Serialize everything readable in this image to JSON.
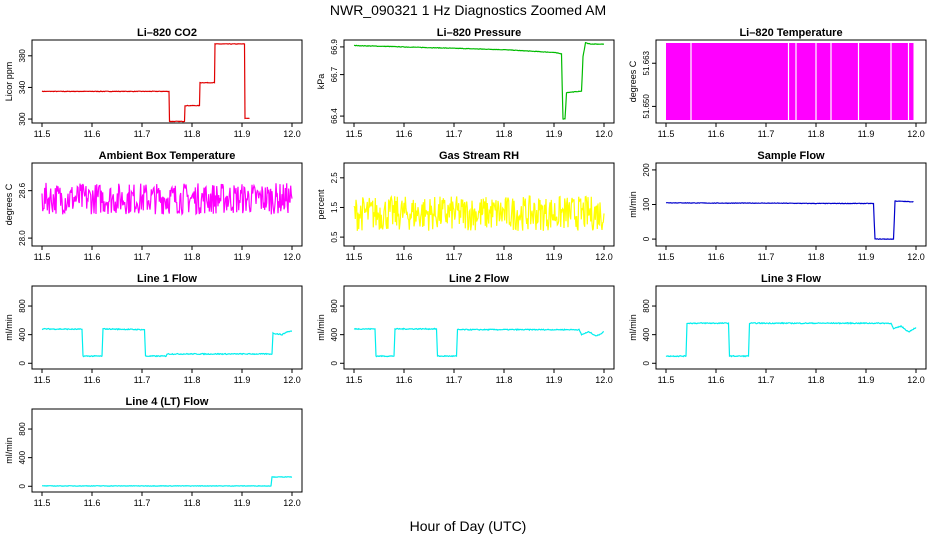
{
  "figure": {
    "title": "NWR_090321  1 Hz Diagnostics Zoomed AM",
    "xlabel": "Hour of Day (UTC)"
  },
  "chart_data": [
    {
      "type": "line",
      "title": "Li–820 CO2",
      "ylabel": "Licor ppm",
      "color": "#e00000",
      "xticks": [
        "11.5",
        "11.6",
        "11.7",
        "11.8",
        "11.9",
        "12.0"
      ],
      "yticks": [
        "300",
        "340",
        "380"
      ],
      "ylim": [
        295,
        400
      ],
      "series": [
        {
          "values": [
            [
              11.5,
              335
            ],
            [
              11.754,
              335
            ],
            [
              11.755,
              297
            ],
            [
              11.785,
              297
            ],
            [
              11.786,
              317
            ],
            [
              11.815,
              317
            ],
            [
              11.816,
              346
            ],
            [
              11.845,
              346
            ],
            [
              11.846,
              395
            ],
            [
              11.905,
              395
            ],
            [
              11.906,
              301
            ],
            [
              11.915,
              301
            ]
          ]
        }
      ]
    },
    {
      "type": "line",
      "title": "Li–820 Pressure",
      "ylabel": "kPa",
      "color": "#00bb00",
      "xticks": [
        "11.5",
        "11.6",
        "11.7",
        "11.8",
        "11.9",
        "12.0"
      ],
      "yticks": [
        "66.4",
        "66.7",
        "66.9"
      ],
      "ylim": [
        66.35,
        66.95
      ],
      "series": [
        {
          "values": [
            [
              11.5,
              66.91
            ],
            [
              11.6,
              66.9
            ],
            [
              11.7,
              66.89
            ],
            [
              11.8,
              66.88
            ],
            [
              11.85,
              66.87
            ],
            [
              11.9,
              66.86
            ],
            [
              11.915,
              66.85
            ],
            [
              11.918,
              66.38
            ],
            [
              11.922,
              66.38
            ],
            [
              11.925,
              66.57
            ],
            [
              11.955,
              66.58
            ],
            [
              11.958,
              66.83
            ],
            [
              11.963,
              66.93
            ],
            [
              11.975,
              66.92
            ],
            [
              12.0,
              66.92
            ]
          ]
        }
      ]
    },
    {
      "type": "area",
      "title": "Li–820 Temperature",
      "ylabel": "degrees C",
      "color": "#ff00ff",
      "xticks": [
        "11.5",
        "11.6",
        "11.7",
        "11.8",
        "11.9",
        "12.0"
      ],
      "yticks": [
        "51.650",
        "51.663"
      ],
      "ylim": [
        51.645,
        51.67
      ],
      "series": [
        {
          "values": [
            [
              11.5,
              51.669
            ],
            [
              11.995,
              51.669
            ]
          ]
        }
      ]
    },
    {
      "type": "line",
      "title": "Ambient Box Temperature",
      "ylabel": "degrees C",
      "color": "#ff00ff",
      "xticks": [
        "11.5",
        "11.6",
        "11.7",
        "11.8",
        "11.9",
        "12.0"
      ],
      "yticks": [
        "28.0",
        "28.6"
      ],
      "ylim": [
        27.9,
        28.95
      ],
      "series": [
        {
          "values": [
            [
              11.5,
              28.5
            ],
            [
              11.6,
              28.5
            ],
            [
              11.7,
              28.5
            ],
            [
              11.8,
              28.5
            ],
            [
              11.9,
              28.5
            ],
            [
              12.0,
              28.5
            ]
          ]
        }
      ]
    },
    {
      "type": "line",
      "title": "Gas Stream RH",
      "ylabel": "percent",
      "color": "#ffff00",
      "xticks": [
        "11.5",
        "11.6",
        "11.7",
        "11.8",
        "11.9",
        "12.0"
      ],
      "yticks": [
        "0.5",
        "1.5",
        "2.5"
      ],
      "ylim": [
        0.2,
        3.0
      ],
      "series": [
        {
          "values": [
            [
              11.5,
              1.3
            ],
            [
              11.6,
              1.3
            ],
            [
              11.7,
              1.3
            ],
            [
              11.8,
              1.3
            ],
            [
              11.9,
              1.3
            ],
            [
              12.0,
              1.3
            ]
          ]
        }
      ]
    },
    {
      "type": "line",
      "title": "Sample Flow",
      "ylabel": "ml/min",
      "color": "#0000cc",
      "xticks": [
        "11.5",
        "11.6",
        "11.7",
        "11.8",
        "11.9",
        "12.0"
      ],
      "yticks": [
        "0",
        "100",
        "200"
      ],
      "ylim": [
        -20,
        220
      ],
      "series": [
        {
          "values": [
            [
              11.5,
              105
            ],
            [
              11.6,
              104
            ],
            [
              11.7,
              104
            ],
            [
              11.8,
              103
            ],
            [
              11.915,
              103
            ],
            [
              11.918,
              0
            ],
            [
              11.955,
              0
            ],
            [
              11.958,
              110
            ],
            [
              11.99,
              108
            ],
            [
              11.995,
              108
            ]
          ]
        }
      ]
    },
    {
      "type": "line",
      "title": "Line 1 Flow",
      "ylabel": "ml/min",
      "color": "#00eeee",
      "xticks": [
        "11.5",
        "11.6",
        "11.7",
        "11.8",
        "11.9",
        "12.0"
      ],
      "yticks": [
        "0",
        "400",
        "800"
      ],
      "ylim": [
        -80,
        1080
      ],
      "series": [
        {
          "values": [
            [
              11.5,
              480
            ],
            [
              11.58,
              475
            ],
            [
              11.582,
              100
            ],
            [
              11.62,
              100
            ],
            [
              11.622,
              480
            ],
            [
              11.705,
              470
            ],
            [
              11.707,
              100
            ],
            [
              11.748,
              100
            ],
            [
              11.75,
              130
            ],
            [
              11.96,
              130
            ],
            [
              11.962,
              420
            ],
            [
              11.98,
              400
            ],
            [
              11.99,
              440
            ],
            [
              12.0,
              450
            ]
          ]
        }
      ]
    },
    {
      "type": "line",
      "title": "Line 2 Flow",
      "ylabel": "ml/min",
      "color": "#00eeee",
      "xticks": [
        "11.5",
        "11.6",
        "11.7",
        "11.8",
        "11.9",
        "12.0"
      ],
      "yticks": [
        "0",
        "400",
        "800"
      ],
      "ylim": [
        -80,
        1080
      ],
      "series": [
        {
          "values": [
            [
              11.5,
              480
            ],
            [
              11.542,
              480
            ],
            [
              11.544,
              100
            ],
            [
              11.58,
              100
            ],
            [
              11.582,
              480
            ],
            [
              11.665,
              480
            ],
            [
              11.667,
              100
            ],
            [
              11.705,
              100
            ],
            [
              11.707,
              470
            ],
            [
              11.8,
              470
            ],
            [
              11.95,
              470
            ],
            [
              11.955,
              400
            ],
            [
              11.97,
              440
            ],
            [
              11.985,
              380
            ],
            [
              12.0,
              440
            ]
          ]
        }
      ]
    },
    {
      "type": "line",
      "title": "Line 3 Flow",
      "ylabel": "ml/min",
      "color": "#00eeee",
      "xticks": [
        "11.5",
        "11.6",
        "11.7",
        "11.8",
        "11.9",
        "12.0"
      ],
      "yticks": [
        "0",
        "400",
        "800"
      ],
      "ylim": [
        -80,
        1080
      ],
      "series": [
        {
          "values": [
            [
              11.5,
              100
            ],
            [
              11.54,
              100
            ],
            [
              11.542,
              560
            ],
            [
              11.625,
              560
            ],
            [
              11.627,
              100
            ],
            [
              11.665,
              100
            ],
            [
              11.667,
              560
            ],
            [
              11.8,
              560
            ],
            [
              11.95,
              560
            ],
            [
              11.955,
              480
            ],
            [
              11.97,
              520
            ],
            [
              11.985,
              440
            ],
            [
              12.0,
              500
            ]
          ]
        }
      ]
    },
    {
      "type": "line",
      "title": "Line 4 (LT) Flow",
      "ylabel": "ml/min",
      "color": "#00eeee",
      "xticks": [
        "11.5",
        "11.6",
        "11.7",
        "11.8",
        "11.9",
        "12.0"
      ],
      "yticks": [
        "0",
        "400",
        "800"
      ],
      "ylim": [
        -80,
        1080
      ],
      "series": [
        {
          "values": [
            [
              11.5,
              5
            ],
            [
              11.958,
              5
            ],
            [
              11.96,
              130
            ],
            [
              12.0,
              130
            ]
          ]
        }
      ]
    }
  ]
}
